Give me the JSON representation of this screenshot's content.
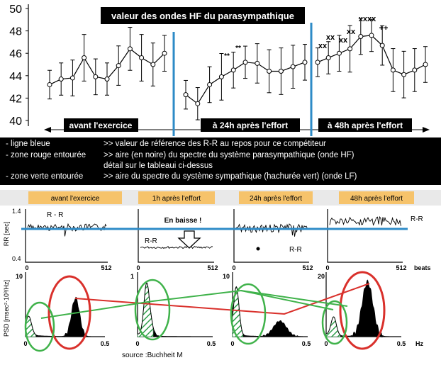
{
  "top_chart": {
    "title": "valeur des ondes HF du parasympathique",
    "y_ticks": [
      "40",
      "42",
      "44",
      "46",
      "48",
      "50"
    ],
    "ylim": [
      40,
      50
    ],
    "phases": [
      "avant l'exercice",
      "à 24h après l'effort",
      "à 48h après l'effort"
    ],
    "significance_marks": [
      "**",
      "**",
      "xx",
      "xx",
      "xx",
      "xx",
      "xxxx",
      "++"
    ]
  },
  "legend": {
    "line1_left": "-  ligne bleue",
    "line1_right": ">> valeur de référence des R-R au repos pour ce compétiteur",
    "line2_left": "-  zone rouge entourée",
    "line2_right": ">>  aire  (en noire) du spectre du système parasympathique (onde HF)",
    "line2_cont": "détail sur le tableaui ci-dessus",
    "line3_left": "-  zone verte entourée",
    "line3_right": ">>  aire du spectre du système sympathique (hachurée vert)  (onde LF)"
  },
  "bottom": {
    "headers": [
      "avant l'exercice",
      "1h après l'effort",
      "24h après l'effort",
      "48h après l'effort"
    ],
    "rr_axis_label": "RR [sec]",
    "rr_y_ticks": [
      "1.4",
      "0.4"
    ],
    "rr_x_ticks": [
      "0",
      "512"
    ],
    "beats_label": "beats",
    "rr_labels": [
      "R - R",
      "R-R",
      "R-R",
      "R-R"
    ],
    "annotation": "En baisse !",
    "psd_axis_label": "PSD [msec²·10³/Hz]",
    "psd_y_max": [
      "10",
      "1",
      "10",
      "20"
    ],
    "psd_x_ticks": [
      "0",
      "0.5"
    ],
    "hz_label": "Hz",
    "source": "source :Buchheit M"
  },
  "chart_data": {
    "type": "line",
    "title": "valeur des ondes HF du parasympathique",
    "ylim": [
      40,
      50
    ],
    "series": [
      {
        "phase": "avant l'exercice",
        "values": [
          43.2,
          43.7,
          43.8,
          45.6,
          43.9,
          43.7,
          44.9,
          46.4,
          45.6,
          45.0,
          46.0
        ]
      },
      {
        "phase": "à 24h après l'effort",
        "values": [
          42.3,
          41.5,
          43.2,
          43.9,
          44.5,
          45.2,
          45.1,
          44.4,
          44.4,
          44.8,
          45.2
        ]
      },
      {
        "phase": "à 48h après l'effort",
        "values": [
          45.2,
          45.6,
          46.0,
          46.4,
          47.5,
          47.6,
          46.7,
          44.5,
          44.1,
          44.5,
          45.0
        ]
      }
    ],
    "error": [
      0.8,
      0.9,
      1.0,
      1.3,
      1.0,
      0.9,
      1.1,
      1.2,
      1.3,
      1.2,
      1.0
    ]
  }
}
